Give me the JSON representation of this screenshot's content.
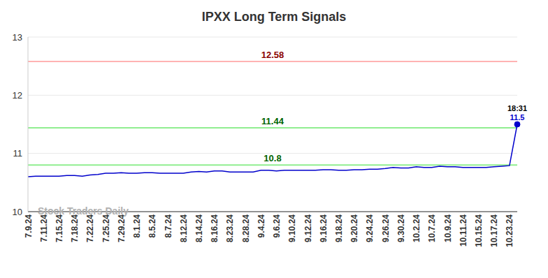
{
  "chart_data": {
    "type": "line",
    "title": "IPXX Long Term Signals",
    "watermark": "Stock Traders Daily",
    "last_point_time": "18:31",
    "categories": [
      "7.9.24",
      null,
      "7.11.24",
      null,
      "7.15.24",
      null,
      "7.18.24",
      null,
      "7.22.24",
      null,
      "7.25.24",
      null,
      "7.29.24",
      null,
      "8.1.24",
      null,
      "8.5.24",
      null,
      "8.7.24",
      null,
      "8.12.24",
      null,
      "8.14.24",
      null,
      "8.16.24",
      null,
      "8.23.24",
      null,
      "8.28.24",
      null,
      "9.4.24",
      null,
      "9.6.24",
      null,
      "9.10.24",
      null,
      "9.12.24",
      null,
      "9.16.24",
      null,
      "9.18.24",
      null,
      "9.20.24",
      null,
      "9.24.24",
      null,
      "9.26.24",
      null,
      "9.30.24",
      null,
      "10.2.24",
      null,
      "10.7.24",
      null,
      "10.9.24",
      null,
      "10.11.24",
      null,
      "10.15.24",
      null,
      "10.17.24",
      null,
      "10.23.24",
      null
    ],
    "values": [
      10.6,
      10.61,
      10.61,
      10.61,
      10.61,
      10.62,
      10.62,
      10.61,
      10.63,
      10.64,
      10.66,
      10.66,
      10.67,
      10.66,
      10.66,
      10.67,
      10.67,
      10.66,
      10.66,
      10.66,
      10.66,
      10.68,
      10.69,
      10.68,
      10.7,
      10.7,
      10.68,
      10.68,
      10.68,
      10.68,
      10.71,
      10.71,
      10.7,
      10.71,
      10.71,
      10.71,
      10.71,
      10.71,
      10.72,
      10.72,
      10.71,
      10.71,
      10.72,
      10.72,
      10.73,
      10.73,
      10.74,
      10.76,
      10.75,
      10.75,
      10.77,
      10.76,
      10.76,
      10.78,
      10.77,
      10.77,
      10.76,
      10.76,
      10.76,
      10.76,
      10.77,
      10.78,
      10.79,
      11.5
    ],
    "color": "#0000cc",
    "ylim": [
      10,
      13
    ],
    "yticks": [
      10,
      11,
      12,
      13
    ],
    "grid": true,
    "reference_lines": [
      {
        "value": 12.58,
        "label": "12.58",
        "color": "#ffb3b3",
        "label_color": "#8b0000"
      },
      {
        "value": 11.44,
        "label": "11.44",
        "color": "#90ee90",
        "label_color": "#006400"
      },
      {
        "value": 10.8,
        "label": "10.8",
        "color": "#90ee90",
        "label_color": "#006400"
      }
    ]
  }
}
